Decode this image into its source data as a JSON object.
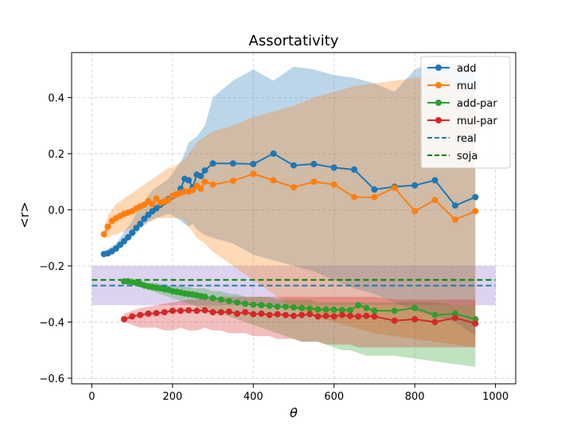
{
  "chart_data": {
    "type": "line",
    "title": "Assortativity",
    "xlabel": "θ",
    "ylabel": "<r>",
    "xlim": [
      -50,
      1050
    ],
    "ylim": [
      -0.62,
      0.56
    ],
    "xticks": [
      0,
      200,
      400,
      600,
      800,
      1000
    ],
    "yticks": [
      -0.6,
      -0.4,
      -0.2,
      0.0,
      0.2,
      0.4
    ],
    "xtick_labels": [
      "0",
      "200",
      "400",
      "600",
      "800",
      "1000"
    ],
    "ytick_labels": [
      "−0.6",
      "−0.4",
      "−0.2",
      "0.0",
      "0.2",
      "0.4"
    ],
    "grid": true,
    "legend_position": "top-right",
    "series": [
      {
        "name": "add",
        "color": "#1f77b4",
        "x": [
          30,
          40,
          50,
          60,
          70,
          80,
          90,
          100,
          110,
          120,
          130,
          140,
          150,
          160,
          170,
          180,
          190,
          200,
          210,
          220,
          230,
          240,
          250,
          260,
          270,
          280,
          300,
          350,
          400,
          450,
          500,
          550,
          600,
          650,
          700,
          750,
          800,
          850,
          900,
          950
        ],
        "y": [
          -0.158,
          -0.155,
          -0.148,
          -0.138,
          -0.125,
          -0.112,
          -0.098,
          -0.082,
          -0.065,
          -0.05,
          -0.032,
          -0.018,
          -0.005,
          0.005,
          0.018,
          0.028,
          0.038,
          0.048,
          0.055,
          0.075,
          0.11,
          0.105,
          0.08,
          0.125,
          0.12,
          0.14,
          0.165,
          0.165,
          0.163,
          0.2,
          0.158,
          0.163,
          0.15,
          0.143,
          0.072,
          0.082,
          0.087,
          0.105,
          0.015,
          0.045
        ],
        "band_low": [
          -0.16,
          -0.16,
          -0.15,
          -0.145,
          -0.135,
          -0.125,
          -0.11,
          -0.1,
          -0.085,
          -0.07,
          -0.055,
          -0.045,
          -0.035,
          -0.03,
          -0.025,
          -0.02,
          -0.015,
          -0.02,
          -0.03,
          -0.04,
          -0.05,
          -0.06,
          -0.05,
          -0.07,
          -0.08,
          -0.09,
          -0.1,
          -0.12,
          -0.16,
          -0.18,
          -0.2,
          -0.22,
          -0.25,
          -0.28,
          -0.3,
          -0.33,
          -0.36,
          -0.38,
          -0.4,
          -0.45
        ],
        "band_high": [
          -0.15,
          -0.14,
          -0.13,
          -0.12,
          -0.1,
          -0.08,
          -0.06,
          -0.04,
          -0.01,
          0.01,
          0.03,
          0.05,
          0.07,
          0.08,
          0.09,
          0.1,
          0.11,
          0.13,
          0.15,
          0.17,
          0.2,
          0.24,
          0.25,
          0.26,
          0.28,
          0.3,
          0.4,
          0.46,
          0.5,
          0.46,
          0.51,
          0.5,
          0.48,
          0.47,
          0.45,
          0.42,
          0.5,
          0.53,
          0.52,
          0.51
        ]
      },
      {
        "name": "mul",
        "color": "#ff7f0e",
        "x": [
          30,
          40,
          50,
          60,
          70,
          80,
          90,
          100,
          110,
          120,
          130,
          140,
          150,
          160,
          170,
          180,
          190,
          200,
          210,
          220,
          230,
          240,
          250,
          260,
          270,
          280,
          300,
          350,
          400,
          450,
          500,
          550,
          600,
          650,
          700,
          750,
          800,
          850,
          900,
          950
        ],
        "y": [
          -0.087,
          -0.06,
          -0.04,
          -0.03,
          -0.022,
          -0.015,
          -0.01,
          -0.005,
          0.005,
          0.012,
          0.018,
          0.03,
          0.02,
          0.04,
          0.025,
          0.03,
          0.035,
          0.05,
          0.055,
          0.06,
          0.065,
          0.065,
          0.07,
          0.085,
          0.075,
          0.1,
          0.09,
          0.103,
          0.128,
          0.105,
          0.08,
          0.1,
          0.09,
          0.045,
          0.045,
          0.078,
          -0.005,
          0.035,
          -0.035,
          -0.005
        ],
        "band_low": [
          -0.1,
          -0.1,
          -0.09,
          -0.09,
          -0.08,
          -0.08,
          -0.07,
          -0.07,
          -0.06,
          -0.06,
          -0.05,
          -0.04,
          -0.04,
          -0.03,
          -0.03,
          -0.03,
          -0.03,
          -0.03,
          -0.03,
          -0.03,
          -0.04,
          -0.06,
          -0.08,
          -0.1,
          -0.11,
          -0.12,
          -0.15,
          -0.2,
          -0.25,
          -0.3,
          -0.35,
          -0.38,
          -0.4,
          -0.42,
          -0.44,
          -0.45,
          -0.46,
          -0.47,
          -0.48,
          -0.49
        ],
        "band_high": [
          -0.06,
          -0.02,
          0.0,
          0.02,
          0.03,
          0.04,
          0.05,
          0.06,
          0.07,
          0.08,
          0.09,
          0.1,
          0.11,
          0.12,
          0.13,
          0.14,
          0.15,
          0.15,
          0.16,
          0.17,
          0.18,
          0.2,
          0.22,
          0.24,
          0.25,
          0.26,
          0.28,
          0.3,
          0.33,
          0.35,
          0.37,
          0.4,
          0.42,
          0.44,
          0.45,
          0.46,
          0.47,
          0.48,
          0.46,
          0.4
        ]
      },
      {
        "name": "add-par",
        "color": "#2ca02c",
        "x": [
          80,
          90,
          100,
          110,
          120,
          130,
          140,
          150,
          160,
          170,
          180,
          190,
          200,
          210,
          220,
          230,
          240,
          250,
          260,
          270,
          280,
          300,
          320,
          340,
          360,
          380,
          400,
          420,
          440,
          460,
          480,
          500,
          520,
          540,
          560,
          580,
          600,
          620,
          640,
          660,
          680,
          700,
          750,
          800,
          850,
          900,
          950
        ],
        "y": [
          -0.255,
          -0.255,
          -0.258,
          -0.26,
          -0.265,
          -0.27,
          -0.273,
          -0.275,
          -0.278,
          -0.28,
          -0.283,
          -0.285,
          -0.29,
          -0.292,
          -0.295,
          -0.298,
          -0.3,
          -0.302,
          -0.305,
          -0.308,
          -0.31,
          -0.315,
          -0.32,
          -0.325,
          -0.33,
          -0.335,
          -0.338,
          -0.34,
          -0.342,
          -0.345,
          -0.345,
          -0.348,
          -0.35,
          -0.352,
          -0.355,
          -0.355,
          -0.356,
          -0.357,
          -0.358,
          -0.34,
          -0.35,
          -0.36,
          -0.36,
          -0.35,
          -0.375,
          -0.37,
          -0.39
        ],
        "band_low": [
          -0.26,
          -0.26,
          -0.265,
          -0.27,
          -0.275,
          -0.28,
          -0.285,
          -0.29,
          -0.295,
          -0.3,
          -0.305,
          -0.31,
          -0.315,
          -0.32,
          -0.325,
          -0.33,
          -0.335,
          -0.34,
          -0.345,
          -0.35,
          -0.355,
          -0.36,
          -0.37,
          -0.38,
          -0.39,
          -0.4,
          -0.41,
          -0.42,
          -0.43,
          -0.44,
          -0.45,
          -0.46,
          -0.47,
          -0.47,
          -0.47,
          -0.48,
          -0.49,
          -0.5,
          -0.5,
          -0.51,
          -0.52,
          -0.52,
          -0.52,
          -0.53,
          -0.54,
          -0.55,
          -0.56
        ],
        "band_high": [
          -0.25,
          -0.25,
          -0.25,
          -0.25,
          -0.25,
          -0.255,
          -0.26,
          -0.26,
          -0.26,
          -0.265,
          -0.265,
          -0.27,
          -0.27,
          -0.27,
          -0.27,
          -0.275,
          -0.275,
          -0.28,
          -0.28,
          -0.28,
          -0.28,
          -0.29,
          -0.29,
          -0.3,
          -0.3,
          -0.31,
          -0.31,
          -0.31,
          -0.31,
          -0.32,
          -0.32,
          -0.32,
          -0.32,
          -0.32,
          -0.33,
          -0.33,
          -0.33,
          -0.33,
          -0.33,
          -0.33,
          -0.33,
          -0.33,
          -0.33,
          -0.33,
          -0.33,
          -0.34,
          -0.34
        ]
      },
      {
        "name": "mul-par",
        "color": "#d62728",
        "x": [
          80,
          100,
          120,
          140,
          160,
          180,
          200,
          220,
          240,
          260,
          280,
          300,
          320,
          340,
          360,
          380,
          400,
          420,
          440,
          460,
          480,
          500,
          520,
          540,
          560,
          580,
          600,
          620,
          640,
          660,
          680,
          700,
          750,
          800,
          850,
          900,
          950
        ],
        "y": [
          -0.39,
          -0.38,
          -0.375,
          -0.37,
          -0.368,
          -0.365,
          -0.36,
          -0.36,
          -0.358,
          -0.36,
          -0.358,
          -0.365,
          -0.365,
          -0.363,
          -0.37,
          -0.365,
          -0.372,
          -0.37,
          -0.375,
          -0.372,
          -0.375,
          -0.378,
          -0.375,
          -0.372,
          -0.38,
          -0.378,
          -0.38,
          -0.375,
          -0.378,
          -0.38,
          -0.378,
          -0.38,
          -0.395,
          -0.39,
          -0.4,
          -0.385,
          -0.405
        ],
        "band_low": [
          -0.4,
          -0.41,
          -0.42,
          -0.42,
          -0.42,
          -0.43,
          -0.43,
          -0.42,
          -0.43,
          -0.43,
          -0.42,
          -0.43,
          -0.43,
          -0.44,
          -0.44,
          -0.44,
          -0.45,
          -0.45,
          -0.45,
          -0.46,
          -0.46,
          -0.46,
          -0.47,
          -0.47,
          -0.47,
          -0.48,
          -0.48,
          -0.48,
          -0.48,
          -0.49,
          -0.49,
          -0.49,
          -0.49,
          -0.49,
          -0.49,
          -0.49,
          -0.49
        ],
        "band_high": [
          -0.37,
          -0.36,
          -0.35,
          -0.345,
          -0.34,
          -0.335,
          -0.33,
          -0.325,
          -0.32,
          -0.32,
          -0.315,
          -0.315,
          -0.31,
          -0.31,
          -0.31,
          -0.31,
          -0.31,
          -0.31,
          -0.31,
          -0.31,
          -0.31,
          -0.31,
          -0.31,
          -0.31,
          -0.31,
          -0.31,
          -0.31,
          -0.31,
          -0.31,
          -0.31,
          -0.31,
          -0.31,
          -0.32,
          -0.32,
          -0.32,
          -0.32,
          -0.32
        ]
      }
    ],
    "reference_lines": [
      {
        "name": "real",
        "color": "#1f77b4",
        "y": -0.27,
        "band": [
          -0.34,
          -0.2
        ],
        "band_color": "#b39ddb"
      },
      {
        "name": "soja",
        "color": "#008000",
        "y": -0.25
      }
    ]
  }
}
